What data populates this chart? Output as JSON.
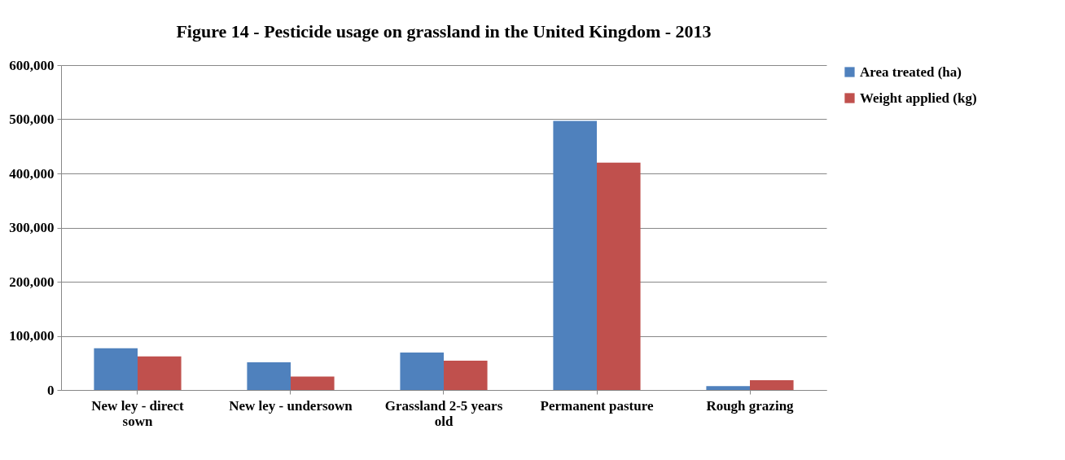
{
  "chart_data": {
    "type": "bar",
    "title": "Figure 14 - Pesticide usage on grassland in the United Kingdom - 2013",
    "categories": [
      "New ley - direct sown",
      "New ley - undersown",
      "Grassland 2-5 years old",
      "Permanent pasture",
      "Rough grazing"
    ],
    "series": [
      {
        "name": "Area treated (ha)",
        "color": "#4f81bd",
        "values": [
          77000,
          51000,
          69000,
          497000,
          7000
        ]
      },
      {
        "name": "Weight applied (kg)",
        "color": "#c0504d",
        "values": [
          62000,
          25000,
          54000,
          420000,
          18000
        ]
      }
    ],
    "ylim": [
      0,
      600000
    ],
    "yticks": [
      {
        "value": 0,
        "label": "0"
      },
      {
        "value": 100000,
        "label": "100,000"
      },
      {
        "value": 200000,
        "label": "200,000"
      },
      {
        "value": 300000,
        "label": "300,000"
      },
      {
        "value": 400000,
        "label": "400,000"
      },
      {
        "value": 500000,
        "label": "500,000"
      },
      {
        "value": 600000,
        "label": "600,000"
      }
    ],
    "grid": "y",
    "legend": "right"
  }
}
